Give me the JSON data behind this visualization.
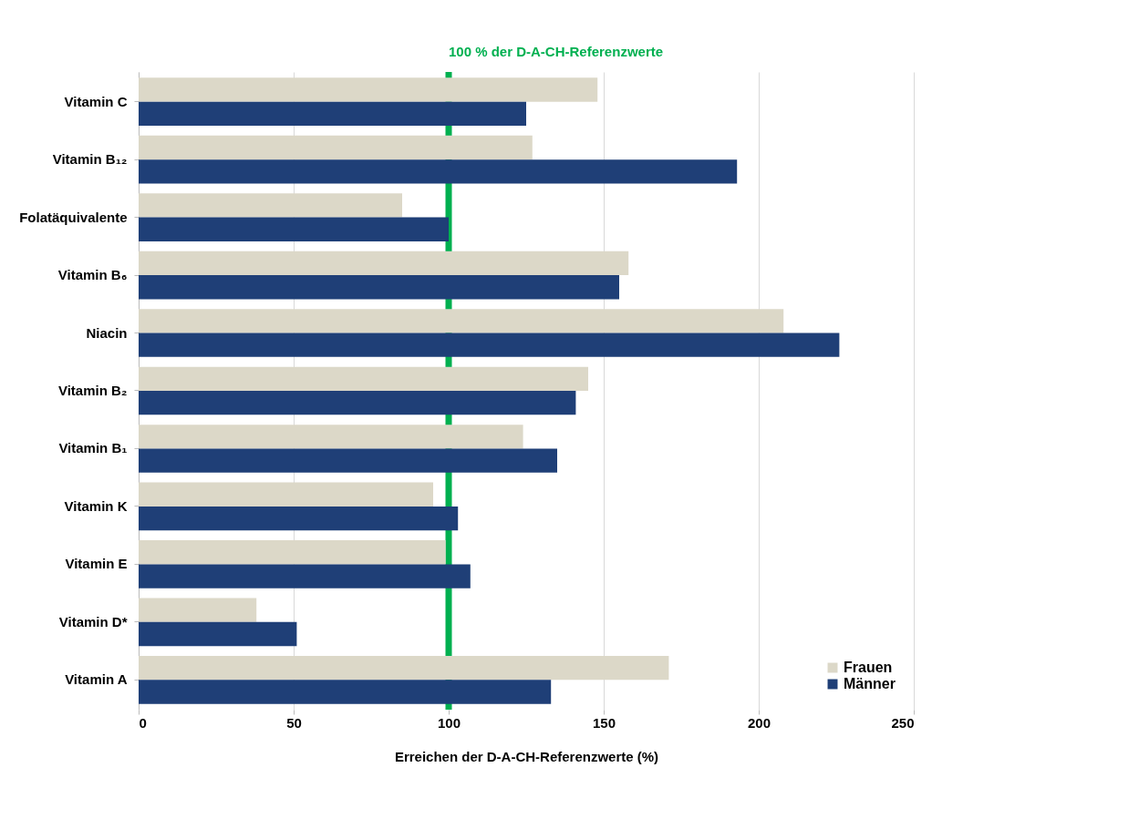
{
  "chart_data": {
    "type": "bar",
    "orientation": "horizontal",
    "xlabel": "Erreichen der D-A-CH-Referenzwerte (%)",
    "categories": [
      "Vitamin C",
      "Vitamin B₁₂",
      "Folatäquivalente",
      "Vitamin B₆",
      "Niacin",
      "Vitamin B₂",
      "Vitamin B₁",
      "Vitamin K",
      "Vitamin E",
      "Vitamin D*",
      "Vitamin A"
    ],
    "series": [
      {
        "name": "Frauen",
        "color": "#dcd8c8",
        "values": [
          148,
          127,
          85,
          158,
          208,
          145,
          124,
          95,
          99,
          38,
          171
        ]
      },
      {
        "name": "Männer",
        "color": "#1f3f77",
        "values": [
          125,
          193,
          100,
          155,
          226,
          141,
          135,
          103,
          107,
          51,
          133
        ]
      }
    ],
    "xlim": [
      0,
      250
    ],
    "xticks": [
      0,
      50,
      100,
      150,
      200,
      250
    ],
    "grid": "x",
    "legend": "bottom right",
    "ref_lines": [
      {
        "axis": "x",
        "value": 100,
        "label": "100 % der D-A-CH-Referenzwerte",
        "color": "#00b050"
      }
    ]
  }
}
